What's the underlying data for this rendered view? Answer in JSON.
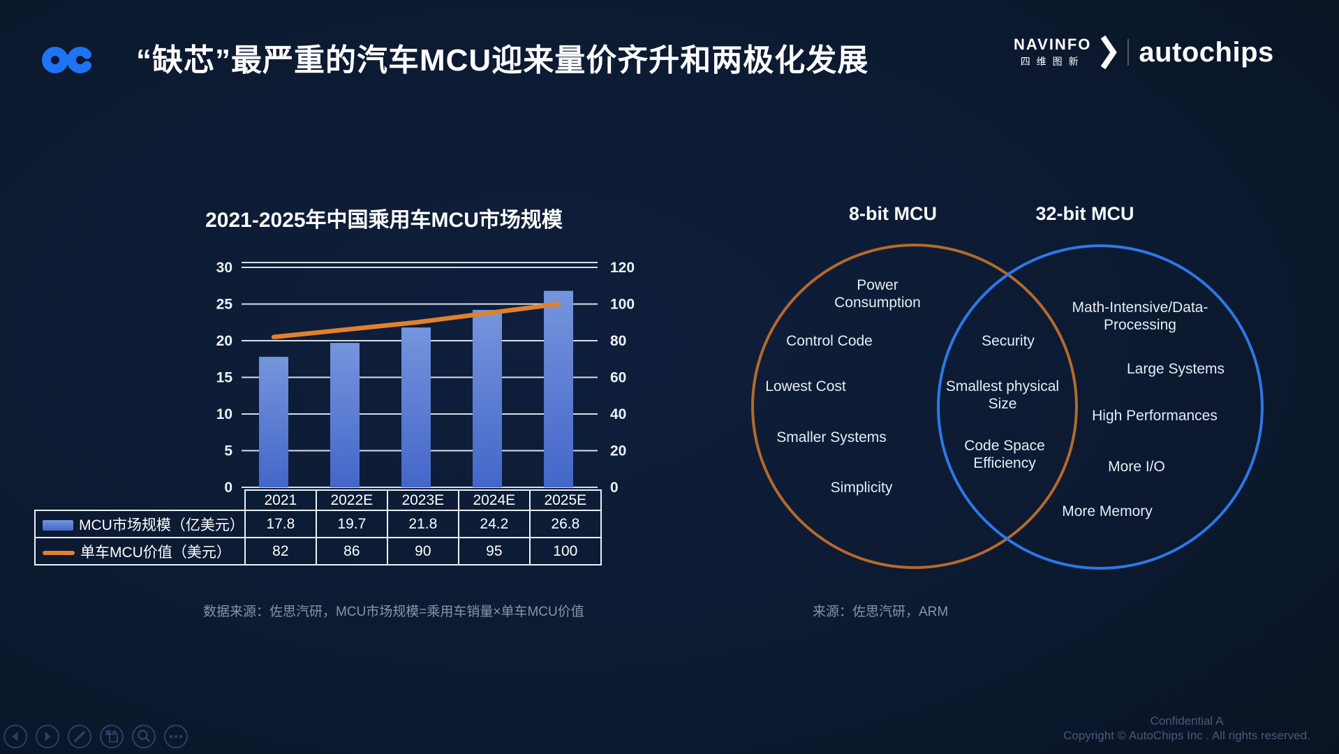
{
  "slide": {
    "title": "“缺芯”最严重的汽车MCU迎来量价齐升和两极化发展"
  },
  "brand": {
    "oc_logo": "oc",
    "navinfo_en": "NAVINFO",
    "navinfo_cn": "四维图新",
    "autochips": "autochips"
  },
  "chart_data": {
    "type": "bar",
    "title": "2021-2025年中国乘用车MCU市场规模",
    "categories": [
      "2021",
      "2022E",
      "2023E",
      "2024E",
      "2025E"
    ],
    "series": [
      {
        "name": "MCU市场规模（亿美元）",
        "type": "bar",
        "axis": "left",
        "values": [
          17.8,
          19.7,
          21.8,
          24.2,
          26.8
        ],
        "color": "#4a73cf"
      },
      {
        "name": "单车MCU价值（美元）",
        "type": "line",
        "axis": "right",
        "values": [
          82,
          86,
          90,
          95,
          100
        ],
        "color": "#e0812e"
      }
    ],
    "left_axis": {
      "min": 0,
      "max": 30,
      "ticks": [
        30,
        25,
        20,
        15,
        10,
        5,
        0
      ]
    },
    "right_axis": {
      "min": 0,
      "max": 120,
      "ticks": [
        120,
        100,
        80,
        60,
        40,
        20,
        0
      ]
    },
    "grid": true,
    "legend_position": "table-left",
    "source": "数据来源：佐思汽研，MCU市场规模=乘用车销量×单车MCU价值"
  },
  "venn": {
    "left_title": "8-bit MCU",
    "right_title": "32-bit MCU",
    "left_items": [
      "Power\nConsumption",
      "Control Code",
      "Lowest Cost",
      "Smaller Systems",
      "Simplicity"
    ],
    "shared_items": [
      "Security",
      "Smallest physical\nSize",
      "Code Space\nEfficiency"
    ],
    "right_items": [
      "Math-Intensive/Data-\nProcessing",
      "Large Systems",
      "High Performances",
      "More I/O",
      "More Memory"
    ],
    "left_color": "#b5692c",
    "right_color": "#2d78e8",
    "source": "来源：佐思汽研，ARM"
  },
  "footer": {
    "confidential": "Confidential A",
    "copyright": "Copyright © AutoChips Inc . All rights reserved."
  },
  "colors": {
    "background": "#0c1a31",
    "accent_blue": "#1e74f4",
    "bar_blue": "#4a73cf",
    "line_orange": "#e0812e",
    "gridline": "#d7dfeb",
    "muted_text": "#8a93a3"
  }
}
